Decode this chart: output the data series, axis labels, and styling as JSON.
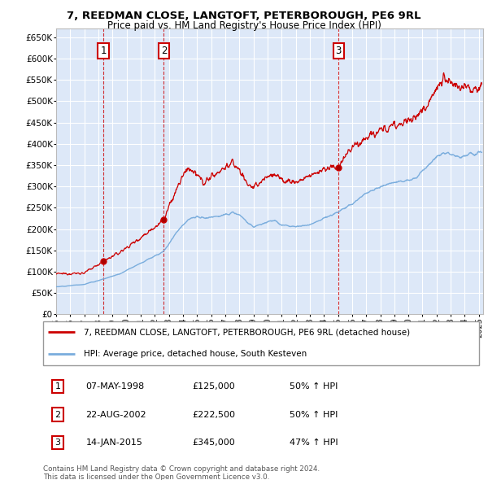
{
  "title_line1": "7, REEDMAN CLOSE, LANGTOFT, PETERBOROUGH, PE6 9RL",
  "title_line2": "Price paid vs. HM Land Registry's House Price Index (HPI)",
  "ylabel_ticks": [
    "£0",
    "£50K",
    "£100K",
    "£150K",
    "£200K",
    "£250K",
    "£300K",
    "£350K",
    "£400K",
    "£450K",
    "£500K",
    "£550K",
    "£600K",
    "£650K"
  ],
  "ytick_values": [
    0,
    50000,
    100000,
    150000,
    200000,
    250000,
    300000,
    350000,
    400000,
    450000,
    500000,
    550000,
    600000,
    650000
  ],
  "xlim": [
    1995.0,
    2025.3
  ],
  "ylim": [
    0,
    670000
  ],
  "sale_dates": [
    1998.354,
    2002.644,
    2015.036
  ],
  "sale_prices": [
    125000,
    222500,
    345000
  ],
  "sale_labels": [
    "1",
    "2",
    "3"
  ],
  "label_box_color": "#ffffff",
  "label_box_edge": "#cc0000",
  "dashed_line_color": "#cc0000",
  "red_line_color": "#cc0000",
  "blue_line_color": "#7aaddd",
  "background_plot": "#dde8f8",
  "grid_color": "#ffffff",
  "legend_line1": "7, REEDMAN CLOSE, LANGTOFT, PETERBOROUGH, PE6 9RL (detached house)",
  "legend_line2": "HPI: Average price, detached house, South Kesteven",
  "table_entries": [
    [
      "1",
      "07-MAY-1998",
      "£125,000",
      "50% ↑ HPI"
    ],
    [
      "2",
      "22-AUG-2002",
      "£222,500",
      "50% ↑ HPI"
    ],
    [
      "3",
      "14-JAN-2015",
      "£345,000",
      "47% ↑ HPI"
    ]
  ],
  "footnote": "Contains HM Land Registry data © Crown copyright and database right 2024.\nThis data is licensed under the Open Government Licence v3.0.",
  "red_keypoints": [
    [
      1995.0,
      95000
    ],
    [
      1997.0,
      97000
    ],
    [
      1998.354,
      125000
    ],
    [
      1999.5,
      145000
    ],
    [
      2001.0,
      180000
    ],
    [
      2002.644,
      222500
    ],
    [
      2003.5,
      290000
    ],
    [
      2004.3,
      345000
    ],
    [
      2004.8,
      330000
    ],
    [
      2005.5,
      310000
    ],
    [
      2006.5,
      335000
    ],
    [
      2007.5,
      355000
    ],
    [
      2008.0,
      340000
    ],
    [
      2008.5,
      310000
    ],
    [
      2009.0,
      295000
    ],
    [
      2009.8,
      320000
    ],
    [
      2010.5,
      330000
    ],
    [
      2011.0,
      315000
    ],
    [
      2012.0,
      310000
    ],
    [
      2013.0,
      325000
    ],
    [
      2014.0,
      340000
    ],
    [
      2015.036,
      345000
    ],
    [
      2015.5,
      370000
    ],
    [
      2016.0,
      390000
    ],
    [
      2017.0,
      415000
    ],
    [
      2018.0,
      430000
    ],
    [
      2019.0,
      445000
    ],
    [
      2020.0,
      455000
    ],
    [
      2020.5,
      460000
    ],
    [
      2021.0,
      480000
    ],
    [
      2022.0,
      530000
    ],
    [
      2022.5,
      555000
    ],
    [
      2023.0,
      540000
    ],
    [
      2023.5,
      530000
    ],
    [
      2024.0,
      545000
    ],
    [
      2024.5,
      530000
    ],
    [
      2025.2,
      535000
    ]
  ],
  "blue_keypoints": [
    [
      1995.0,
      65000
    ],
    [
      1997.0,
      70000
    ],
    [
      1998.354,
      83000
    ],
    [
      1999.5,
      95000
    ],
    [
      2001.0,
      120000
    ],
    [
      2002.644,
      148000
    ],
    [
      2003.5,
      190000
    ],
    [
      2004.3,
      220000
    ],
    [
      2005.0,
      230000
    ],
    [
      2005.5,
      225000
    ],
    [
      2006.5,
      230000
    ],
    [
      2007.5,
      238000
    ],
    [
      2008.0,
      235000
    ],
    [
      2008.5,
      218000
    ],
    [
      2009.0,
      205000
    ],
    [
      2009.8,
      215000
    ],
    [
      2010.5,
      220000
    ],
    [
      2011.0,
      210000
    ],
    [
      2012.0,
      205000
    ],
    [
      2013.0,
      210000
    ],
    [
      2014.0,
      225000
    ],
    [
      2015.0,
      240000
    ],
    [
      2016.0,
      260000
    ],
    [
      2017.0,
      285000
    ],
    [
      2018.0,
      300000
    ],
    [
      2019.0,
      310000
    ],
    [
      2020.0,
      315000
    ],
    [
      2020.5,
      318000
    ],
    [
      2021.0,
      335000
    ],
    [
      2022.0,
      370000
    ],
    [
      2022.5,
      380000
    ],
    [
      2023.0,
      375000
    ],
    [
      2023.5,
      370000
    ],
    [
      2024.0,
      375000
    ],
    [
      2025.2,
      378000
    ]
  ]
}
